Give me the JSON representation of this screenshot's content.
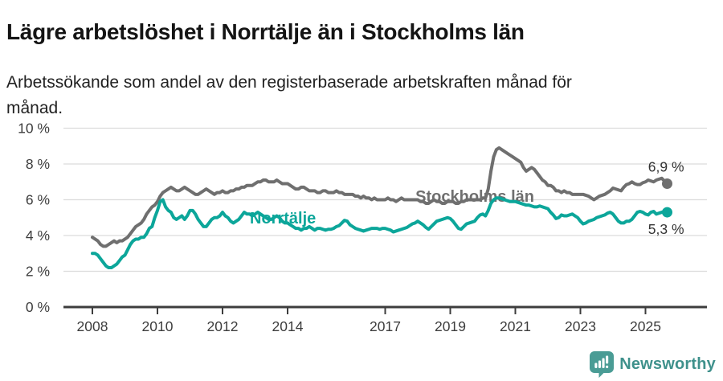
{
  "header": {
    "title": "Lägre arbetslöshet i Norrtälje än i Stockholms län",
    "subtitle": "Arbetssökande som andel av den registerbaserade arbetskraften månad för månad."
  },
  "chart_data": {
    "type": "line",
    "title": "Lägre arbetslöshet i Norrtälje än i Stockholms län",
    "x_unit": "decimal_year_monthly",
    "x_start": 2008.0,
    "x_step": 0.083333,
    "x_range_months": "2008-01 to 2025-09",
    "xlim": [
      2007.1,
      2026.9
    ],
    "ylim": [
      0,
      10
    ],
    "grid": "horizontal",
    "legend_position": "inline-labels",
    "decimal_separator": ",",
    "xticks": [
      2008,
      2010,
      2012,
      2014,
      2017,
      2019,
      2021,
      2023,
      2025
    ],
    "yticks": [
      0,
      2,
      4,
      6,
      8,
      10
    ],
    "ytick_labels": [
      "0 %",
      "2 %",
      "4 %",
      "6 %",
      "8 %",
      "10 %"
    ],
    "colors": {
      "grid": "#dcdcdc",
      "axis": "#3d3d3d",
      "tick_text": "#3d3d3d",
      "value_label": "#333333"
    },
    "series": [
      {
        "name": "Stockholms län",
        "color": "#6f6f6f",
        "end_label": "6,9 %",
        "end_value": 6.9,
        "end_label_position": "above",
        "label_pos": {
          "x": 2017.93,
          "y": 5.89
        },
        "values": [
          3.9,
          3.8,
          3.7,
          3.5,
          3.4,
          3.4,
          3.5,
          3.6,
          3.7,
          3.6,
          3.7,
          3.7,
          3.8,
          3.9,
          4.1,
          4.3,
          4.5,
          4.6,
          4.7,
          4.9,
          5.2,
          5.4,
          5.6,
          5.7,
          5.9,
          6.2,
          6.4,
          6.5,
          6.6,
          6.7,
          6.6,
          6.5,
          6.5,
          6.6,
          6.7,
          6.6,
          6.5,
          6.4,
          6.3,
          6.3,
          6.4,
          6.5,
          6.6,
          6.5,
          6.4,
          6.3,
          6.4,
          6.4,
          6.5,
          6.4,
          6.4,
          6.5,
          6.5,
          6.6,
          6.6,
          6.7,
          6.7,
          6.8,
          6.8,
          6.8,
          6.9,
          7.0,
          7.0,
          7.1,
          7.1,
          7.0,
          7.0,
          7.0,
          7.1,
          7.0,
          6.9,
          6.9,
          6.9,
          6.8,
          6.7,
          6.6,
          6.6,
          6.7,
          6.7,
          6.6,
          6.5,
          6.5,
          6.5,
          6.4,
          6.4,
          6.5,
          6.5,
          6.4,
          6.4,
          6.4,
          6.5,
          6.4,
          6.4,
          6.3,
          6.3,
          6.3,
          6.3,
          6.2,
          6.2,
          6.1,
          6.2,
          6.1,
          6.1,
          6.0,
          6.1,
          6.0,
          6.0,
          6.0,
          6.0,
          6.1,
          6.0,
          6.0,
          5.9,
          6.0,
          6.1,
          6.0,
          6.0,
          6.0,
          6.0,
          6.0,
          6.0,
          5.9,
          5.9,
          5.8,
          5.8,
          5.9,
          6.0,
          5.9,
          5.9,
          5.8,
          5.8,
          5.9,
          5.9,
          5.9,
          5.8,
          5.8,
          5.9,
          5.9,
          6.0,
          6.0,
          6.0,
          6.0,
          6.0,
          6.0,
          6.1,
          6.1,
          6.6,
          7.6,
          8.4,
          8.8,
          8.9,
          8.8,
          8.7,
          8.6,
          8.5,
          8.4,
          8.3,
          8.2,
          8.1,
          7.8,
          7.6,
          7.7,
          7.8,
          7.7,
          7.5,
          7.3,
          7.1,
          7.0,
          6.8,
          6.8,
          6.7,
          6.5,
          6.5,
          6.4,
          6.5,
          6.4,
          6.4,
          6.3,
          6.3,
          6.3,
          6.3,
          6.3,
          6.25,
          6.2,
          6.1,
          6.0,
          6.1,
          6.2,
          6.25,
          6.3,
          6.4,
          6.5,
          6.65,
          6.6,
          6.55,
          6.5,
          6.7,
          6.85,
          6.9,
          7.0,
          6.9,
          6.85,
          6.85,
          6.95,
          7.0,
          7.1,
          7.05,
          7.0,
          7.1,
          7.15,
          7.2,
          7.05,
          6.9
        ]
      },
      {
        "name": "Norrtälje",
        "color": "#0ca69a",
        "end_label": "5,3 %",
        "end_value": 5.3,
        "end_label_position": "below",
        "label_pos": {
          "x": 2012.84,
          "y": 4.67
        },
        "values": [
          3.0,
          3.0,
          2.9,
          2.7,
          2.5,
          2.3,
          2.2,
          2.2,
          2.3,
          2.4,
          2.6,
          2.8,
          2.9,
          3.2,
          3.5,
          3.7,
          3.8,
          3.8,
          3.9,
          3.9,
          4.1,
          4.4,
          4.5,
          5.0,
          5.4,
          5.9,
          6.0,
          5.6,
          5.4,
          5.3,
          5.0,
          4.9,
          5.0,
          5.1,
          4.9,
          5.1,
          5.4,
          5.4,
          5.2,
          4.9,
          4.7,
          4.5,
          4.5,
          4.7,
          4.9,
          5.0,
          5.0,
          5.1,
          5.3,
          5.1,
          5.0,
          4.8,
          4.7,
          4.8,
          4.9,
          5.1,
          5.3,
          5.2,
          5.2,
          5.1,
          5.2,
          5.3,
          5.2,
          5.1,
          5.0,
          4.9,
          4.9,
          5.0,
          5.1,
          5.0,
          4.8,
          4.7,
          4.7,
          4.6,
          4.5,
          4.4,
          4.4,
          4.3,
          4.4,
          4.4,
          4.5,
          4.4,
          4.3,
          4.4,
          4.4,
          4.35,
          4.3,
          4.35,
          4.35,
          4.4,
          4.5,
          4.55,
          4.7,
          4.85,
          4.8,
          4.6,
          4.5,
          4.4,
          4.35,
          4.3,
          4.25,
          4.3,
          4.35,
          4.4,
          4.4,
          4.4,
          4.35,
          4.4,
          4.4,
          4.35,
          4.3,
          4.2,
          4.25,
          4.3,
          4.35,
          4.4,
          4.45,
          4.55,
          4.65,
          4.7,
          4.8,
          4.7,
          4.6,
          4.45,
          4.35,
          4.5,
          4.65,
          4.8,
          4.85,
          4.9,
          4.95,
          5.0,
          4.95,
          4.8,
          4.6,
          4.4,
          4.35,
          4.5,
          4.65,
          4.7,
          4.75,
          4.8,
          5.0,
          5.15,
          5.2,
          5.1,
          5.4,
          5.8,
          6.0,
          6.1,
          6.1,
          6.05,
          6.0,
          5.95,
          5.9,
          5.9,
          5.9,
          5.85,
          5.8,
          5.75,
          5.7,
          5.7,
          5.65,
          5.6,
          5.6,
          5.65,
          5.6,
          5.55,
          5.5,
          5.3,
          5.15,
          4.95,
          5.0,
          5.15,
          5.1,
          5.1,
          5.15,
          5.2,
          5.1,
          5.0,
          4.8,
          4.65,
          4.7,
          4.8,
          4.85,
          4.9,
          5.0,
          5.05,
          5.1,
          5.15,
          5.25,
          5.3,
          5.2,
          5.0,
          4.8,
          4.7,
          4.7,
          4.8,
          4.8,
          4.9,
          5.1,
          5.3,
          5.35,
          5.3,
          5.2,
          5.15,
          5.3,
          5.35,
          5.2,
          5.25,
          5.3,
          5.35,
          5.3
        ]
      }
    ]
  },
  "footer": {
    "brand": "Newsworthy",
    "logo_color": "#4a9c95",
    "brand_text_color": "#3f918c"
  }
}
